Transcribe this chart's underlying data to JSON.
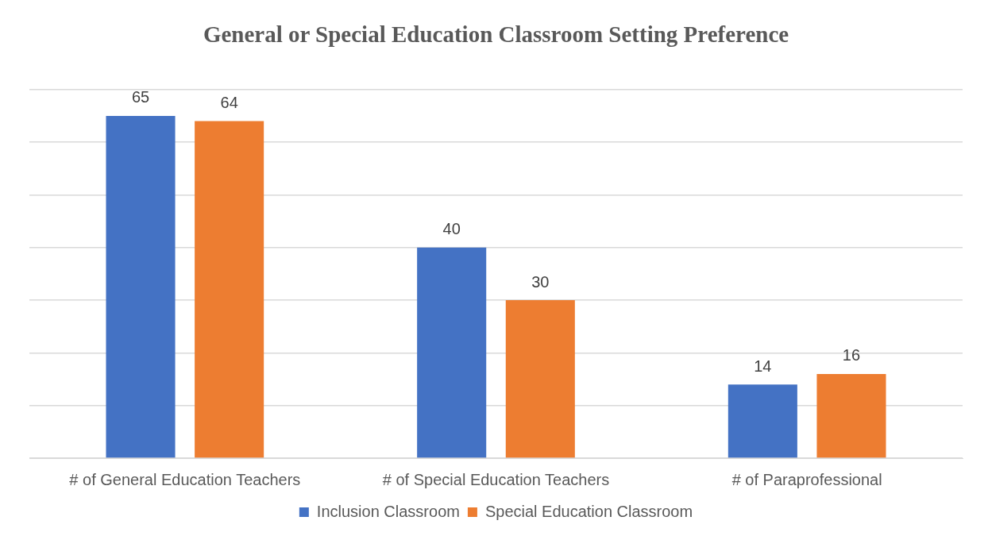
{
  "chart_data": {
    "type": "bar",
    "title": "General or Special Education Classroom Setting Preference",
    "categories": [
      "# of General Education Teachers",
      "# of Special Education Teachers",
      "# of Paraprofessional"
    ],
    "series": [
      {
        "name": "Inclusion Classroom",
        "color": "#4472c4",
        "values": [
          65,
          40,
          14
        ]
      },
      {
        "name": "Special Education Classroom",
        "color": "#ed7d31",
        "values": [
          64,
          30,
          16
        ]
      }
    ],
    "ylim": [
      0,
      70
    ],
    "yticks": [
      {
        "value": 0,
        "label": null
      },
      {
        "value": 10,
        "label": null
      },
      {
        "value": 20,
        "label": null
      },
      {
        "value": 30,
        "label": null
      },
      {
        "value": 40,
        "label": null
      },
      {
        "value": 50,
        "label": null
      },
      {
        "value": 60,
        "label": null
      },
      {
        "value": 70,
        "label": null
      }
    ],
    "tick_labels": "x",
    "grid": "y",
    "legend": "bottom",
    "data_labels": true
  }
}
